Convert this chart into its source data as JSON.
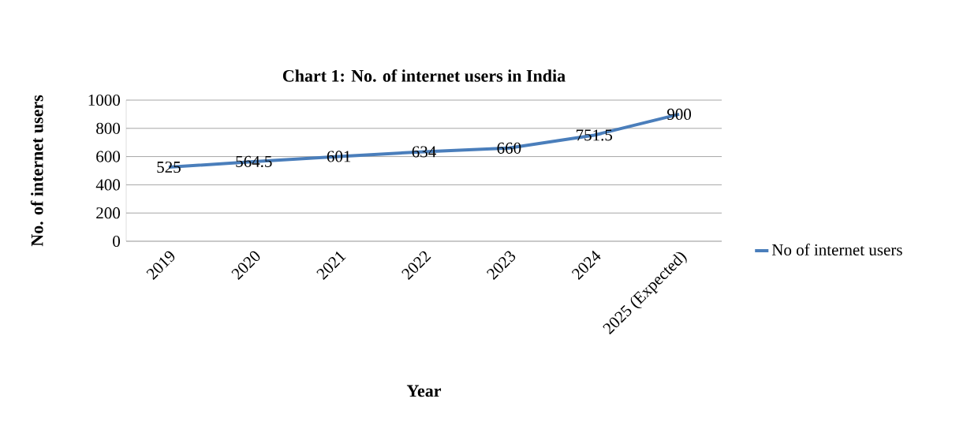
{
  "chart_data": {
    "type": "line",
    "title": "Chart 1: No. of internet users in India",
    "xlabel": "Year",
    "ylabel": "No. of internet users",
    "categories": [
      "2019",
      "2020",
      "2021",
      "2022",
      "2023",
      "2024",
      "2025 (Expected)"
    ],
    "series": [
      {
        "name": "No of internet users",
        "color": "#4a7ebb",
        "values": [
          525,
          564.5,
          601,
          634,
          660,
          751.5,
          900
        ]
      }
    ],
    "ylim": [
      0,
      1000
    ],
    "yticks": [
      0,
      200,
      400,
      600,
      800,
      1000
    ],
    "grid": "y",
    "legend": "right",
    "data_labels": true,
    "marker": "none",
    "line_style": "solid"
  }
}
